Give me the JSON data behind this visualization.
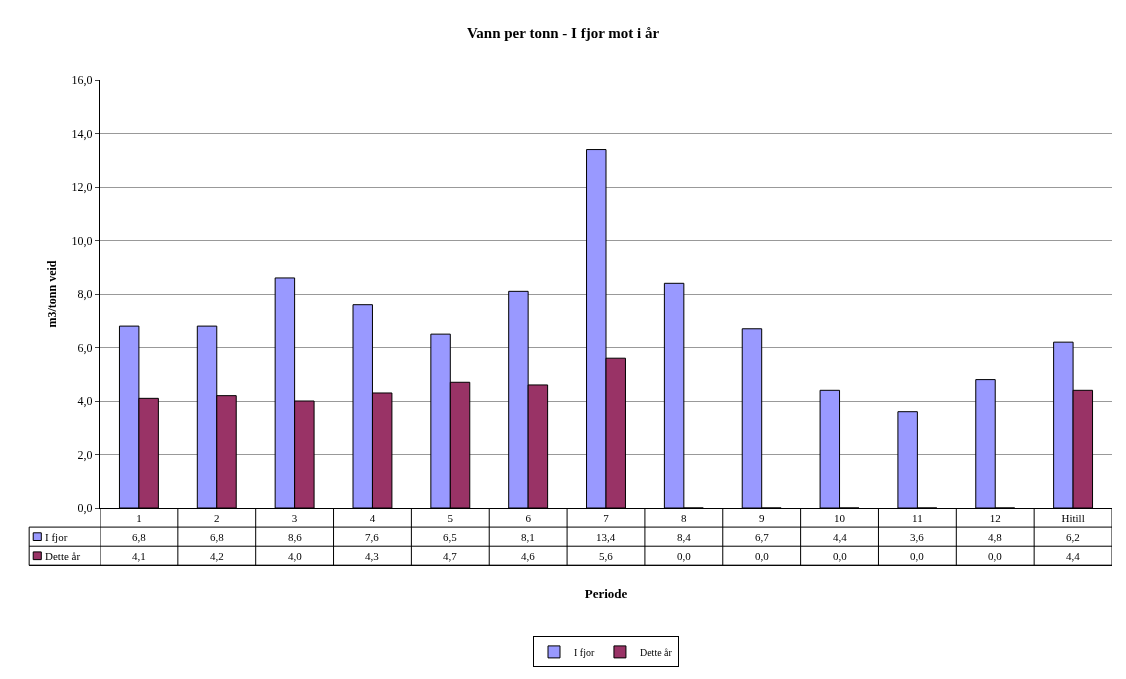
{
  "chart_data": {
    "type": "bar",
    "title": "Vann per tonn - I fjor mot i år",
    "xlabel": "Periode",
    "ylabel": "m3/tonn veid",
    "categories": [
      "1",
      "2",
      "3",
      "4",
      "5",
      "6",
      "7",
      "8",
      "9",
      "10",
      "11",
      "12",
      "Hitill"
    ],
    "series": [
      {
        "name": "I fjor",
        "color": "#9999ff",
        "values": [
          6.8,
          6.8,
          8.6,
          7.6,
          6.5,
          8.1,
          13.4,
          8.4,
          6.7,
          4.4,
          3.6,
          4.8,
          6.2
        ],
        "value_labels": [
          "6,8",
          "6,8",
          "8,6",
          "7,6",
          "6,5",
          "8,1",
          "13,4",
          "8,4",
          "6,7",
          "4,4",
          "3,6",
          "4,8",
          "6,2"
        ]
      },
      {
        "name": "Dette år",
        "color": "#993366",
        "values": [
          4.1,
          4.2,
          4.0,
          4.3,
          4.7,
          4.6,
          5.6,
          0.0,
          0.0,
          0.0,
          0.0,
          0.0,
          4.4
        ],
        "value_labels": [
          "4,1",
          "4,2",
          "4,0",
          "4,3",
          "4,7",
          "4,6",
          "5,6",
          "0,0",
          "0,0",
          "0,0",
          "0,0",
          "0,0",
          "4,4"
        ]
      }
    ],
    "ylim": [
      0,
      16
    ],
    "yticks": [
      {
        "value": 0,
        "label": "0,0"
      },
      {
        "value": 2,
        "label": "2,0"
      },
      {
        "value": 4,
        "label": "4,0"
      },
      {
        "value": 6,
        "label": "6,0"
      },
      {
        "value": 8,
        "label": "8,0"
      },
      {
        "value": 10,
        "label": "10,0"
      },
      {
        "value": 12,
        "label": "12,0"
      },
      {
        "value": 14,
        "label": "14,0"
      },
      {
        "value": 16,
        "label": "16,0"
      }
    ],
    "grid": "y",
    "legend": "bottom"
  }
}
